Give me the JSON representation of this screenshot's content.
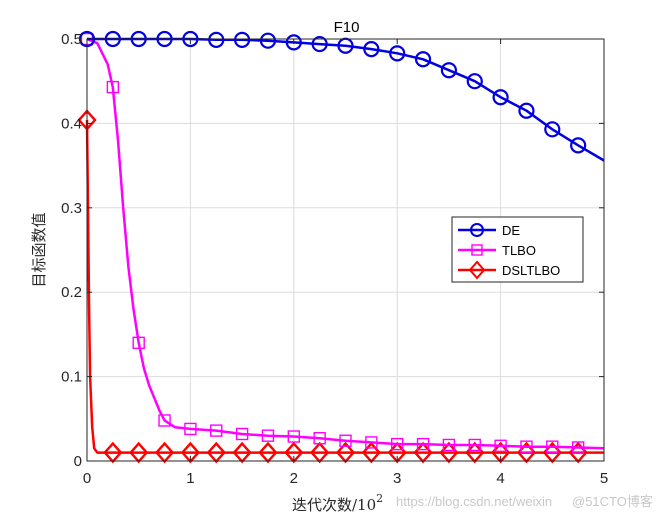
{
  "chart_data": {
    "type": "line",
    "title": "F10",
    "xlabel": "迭代次数/10",
    "xlabel_exponent": "2",
    "ylabel": "目标函数值",
    "xlim": [
      0,
      5
    ],
    "ylim": [
      0,
      0.5
    ],
    "xticks": [
      0,
      1,
      2,
      3,
      4,
      5
    ],
    "xtick_labels": [
      "0",
      "1",
      "2",
      "3",
      "4",
      "5"
    ],
    "yticks": [
      0,
      0.1,
      0.2,
      0.3,
      0.4,
      0.5
    ],
    "ytick_labels": [
      "0",
      "0.1",
      "0.2",
      "0.3",
      "0.4",
      "0.5"
    ],
    "grid": true,
    "legend_position": "east",
    "series": [
      {
        "name": "DE",
        "color": "#0000e0",
        "marker": "circle",
        "x": [
          0,
          0.25,
          0.5,
          0.75,
          1.0,
          1.25,
          1.5,
          1.75,
          2.0,
          2.25,
          2.5,
          2.75,
          3.0,
          3.25,
          3.5,
          3.75,
          4.0,
          4.25,
          4.5,
          4.75,
          5.0
        ],
        "values": [
          0.5,
          0.5,
          0.5,
          0.5,
          0.5,
          0.499,
          0.499,
          0.498,
          0.496,
          0.494,
          0.492,
          0.488,
          0.483,
          0.476,
          0.463,
          0.45,
          0.431,
          0.415,
          0.393,
          0.374,
          0.356
        ]
      },
      {
        "name": "TLBO",
        "color": "#ff00ff",
        "marker": "square",
        "x": [
          0,
          0.1,
          0.2,
          0.25,
          0.3,
          0.35,
          0.4,
          0.45,
          0.5,
          0.55,
          0.6,
          0.65,
          0.7,
          0.75,
          0.85,
          1.0,
          1.25,
          1.5,
          1.75,
          2.0,
          2.25,
          2.5,
          2.75,
          3.0,
          3.25,
          3.5,
          3.75,
          4.0,
          4.25,
          4.5,
          4.75,
          5.0
        ],
        "values": [
          0.5,
          0.495,
          0.47,
          0.443,
          0.38,
          0.3,
          0.23,
          0.18,
          0.14,
          0.11,
          0.09,
          0.075,
          0.06,
          0.048,
          0.04,
          0.038,
          0.036,
          0.032,
          0.03,
          0.029,
          0.027,
          0.024,
          0.022,
          0.02,
          0.02,
          0.019,
          0.019,
          0.018,
          0.017,
          0.017,
          0.016,
          0.015
        ]
      },
      {
        "name": "DSLTLBO",
        "color": "#ff0000",
        "marker": "diamond",
        "x": [
          0,
          0.01,
          0.02,
          0.03,
          0.05,
          0.07,
          0.1,
          0.25,
          0.5,
          0.75,
          1.0,
          1.25,
          1.5,
          1.75,
          2.0,
          2.25,
          2.5,
          2.75,
          3.0,
          3.25,
          3.5,
          3.75,
          4.0,
          4.25,
          4.5,
          4.75,
          5.0
        ],
        "values": [
          0.404,
          0.3,
          0.18,
          0.1,
          0.04,
          0.015,
          0.01,
          0.01,
          0.01,
          0.01,
          0.01,
          0.01,
          0.01,
          0.01,
          0.01,
          0.01,
          0.01,
          0.01,
          0.01,
          0.01,
          0.01,
          0.01,
          0.01,
          0.01,
          0.01,
          0.01,
          0.01
        ]
      }
    ],
    "marker_x": [
      0,
      0.25,
      0.5,
      0.75,
      1.0,
      1.25,
      1.5,
      1.75,
      2.0,
      2.25,
      2.5,
      2.75,
      3.0,
      3.25,
      3.5,
      3.75,
      4.0,
      4.25,
      4.5,
      4.75
    ]
  },
  "watermark": "https://blog.csdn.net/weixin",
  "watermark2": "@51CTO博客"
}
